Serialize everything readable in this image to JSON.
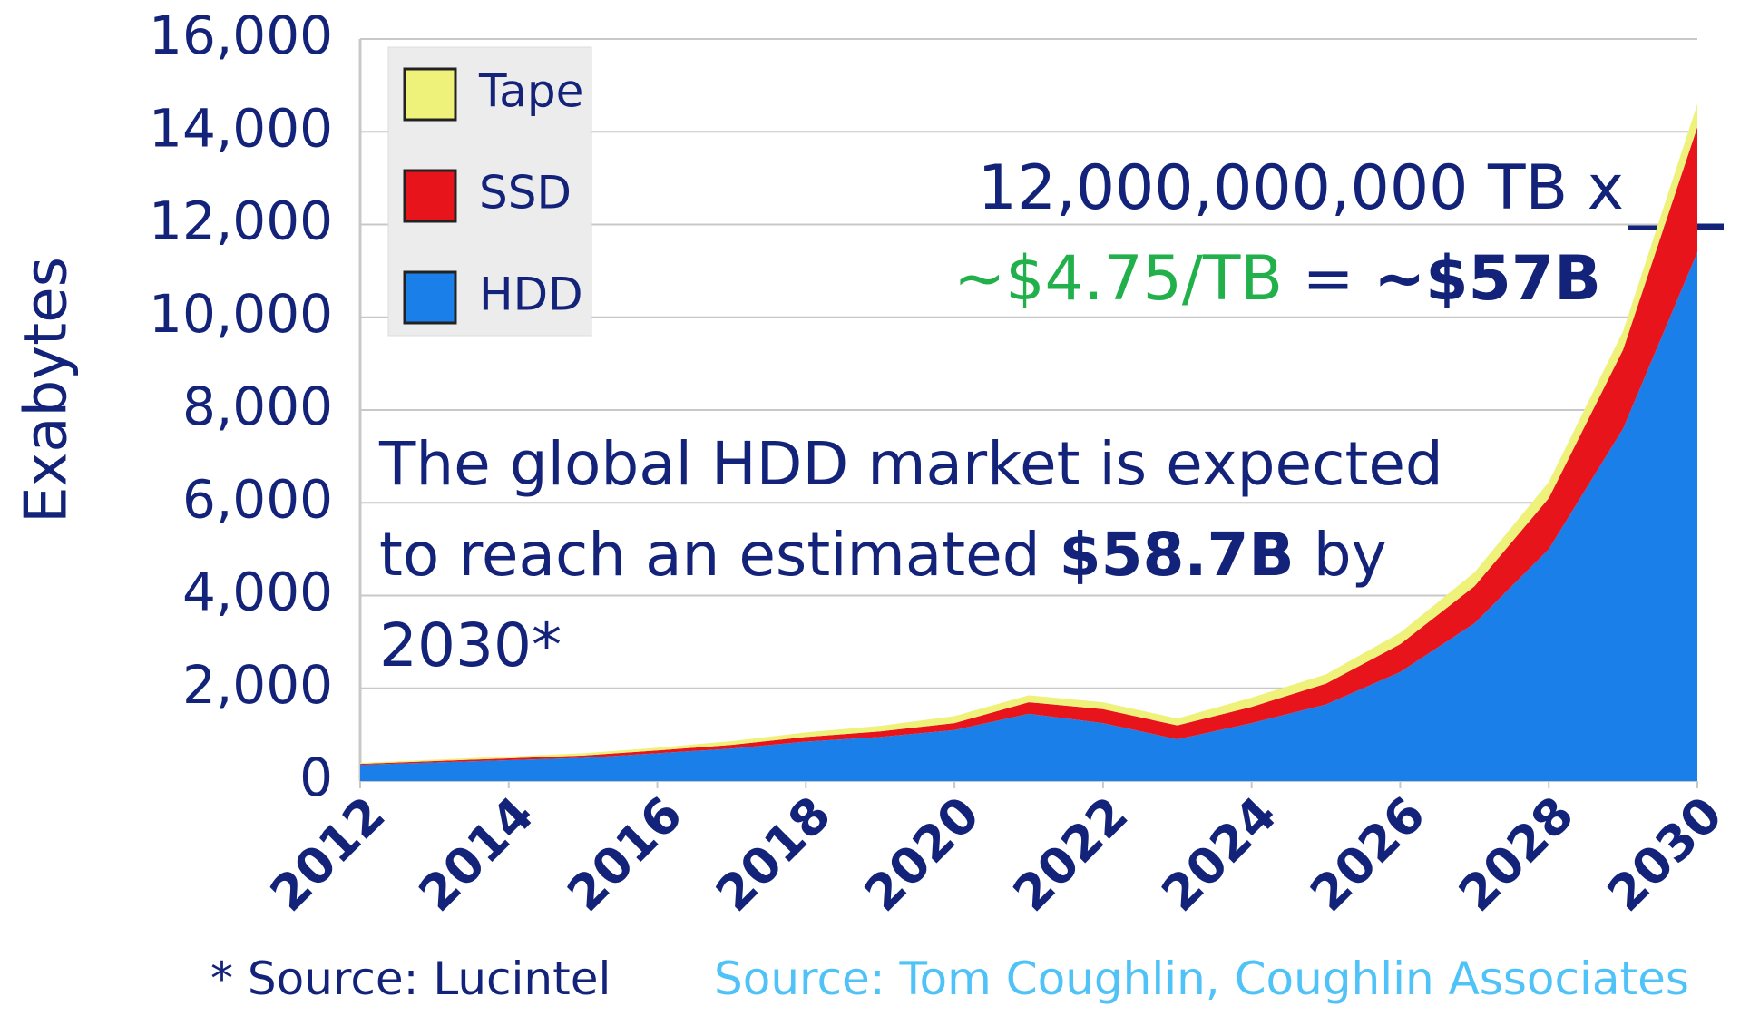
{
  "chart_data": {
    "type": "area",
    "y_label": "Exabytes",
    "x": [
      2012,
      2013,
      2014,
      2015,
      2016,
      2017,
      2018,
      2019,
      2020,
      2021,
      2022,
      2023,
      2024,
      2025,
      2026,
      2027,
      2028,
      2029,
      2030
    ],
    "xlim": [
      2012,
      2030
    ],
    "xticks": [
      2012,
      2014,
      2016,
      2018,
      2020,
      2022,
      2024,
      2026,
      2028,
      2030
    ],
    "ylim": [
      0,
      16000
    ],
    "yticks": [
      0,
      {
        "value": 2000,
        "label": "2,000"
      },
      {
        "value": 4000,
        "label": "4,000"
      },
      {
        "value": 6000,
        "label": "6,000"
      },
      {
        "value": 8000,
        "label": "8,000"
      },
      {
        "value": 10000,
        "label": "10,000"
      },
      {
        "value": 12000,
        "label": "12,000"
      },
      {
        "value": 14000,
        "label": "14,000"
      },
      {
        "value": 16000,
        "label": "16,000"
      }
    ],
    "grid": true,
    "legend": "top-left",
    "series": [
      {
        "name": "HDD",
        "color": "#1a7fe8",
        "values": [
          350,
          400,
          450,
          500,
          600,
          700,
          850,
          950,
          1100,
          1450,
          1250,
          900,
          1250,
          1650,
          2350,
          3400,
          5000,
          7600,
          11400
        ]
      },
      {
        "name": "SSD",
        "color": "#e8141c",
        "values": [
          20,
          30,
          40,
          50,
          60,
          80,
          100,
          120,
          150,
          250,
          300,
          300,
          350,
          450,
          600,
          800,
          1100,
          1700,
          2700
        ]
      },
      {
        "name": "Tape",
        "color": "#eef27a",
        "values": [
          20,
          30,
          40,
          50,
          60,
          80,
          100,
          120,
          150,
          150,
          150,
          150,
          200,
          200,
          250,
          300,
          350,
          400,
          500
        ]
      }
    ],
    "annotations": {
      "capacity": "12,000,000,000 TB x",
      "price": "~$4.75/TB",
      "equals": "=",
      "total": "~$57B",
      "market_start": "The global HDD market is expected to reach an estimated",
      "market_value": "$58.7B",
      "market_end": "by 2030*"
    },
    "footnote": "* Source: Lucintel",
    "source": "Source: Tom Coughlin, Coughlin Associates"
  }
}
